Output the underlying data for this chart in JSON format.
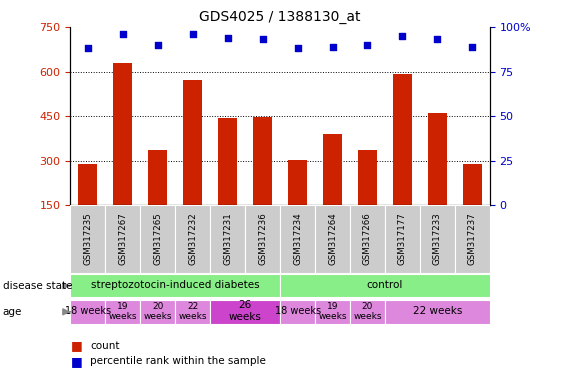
{
  "title": "GDS4025 / 1388130_at",
  "samples": [
    "GSM317235",
    "GSM317267",
    "GSM317265",
    "GSM317232",
    "GSM317231",
    "GSM317236",
    "GSM317234",
    "GSM317264",
    "GSM317266",
    "GSM317177",
    "GSM317233",
    "GSM317237"
  ],
  "bar_values": [
    290,
    630,
    335,
    570,
    445,
    448,
    302,
    390,
    335,
    590,
    462,
    290
  ],
  "percentile_values": [
    88,
    96,
    90,
    96,
    94,
    93,
    88,
    89,
    90,
    95,
    93,
    89
  ],
  "bar_color": "#cc2200",
  "percentile_color": "#0000cc",
  "ylim_left": [
    150,
    750
  ],
  "ylim_right": [
    0,
    100
  ],
  "yticks_left": [
    150,
    300,
    450,
    600,
    750
  ],
  "yticks_right": [
    0,
    25,
    50,
    75,
    100
  ],
  "grid_values": [
    300,
    450,
    600
  ],
  "tick_label_color_left": "#cc2200",
  "tick_label_color_right": "#0000cc",
  "sample_bg_color": "#cccccc",
  "disease_state_color": "#88ee88",
  "age_light_color": "#dd88dd",
  "age_dark_color": "#cc44cc",
  "legend_count_color": "#cc2200",
  "legend_percentile_color": "#0000cc",
  "age_data": [
    {
      "start": 0,
      "end": 1,
      "label": "18 weeks",
      "dark": false
    },
    {
      "start": 1,
      "end": 2,
      "label": "19\nweeks",
      "dark": false
    },
    {
      "start": 2,
      "end": 3,
      "label": "20\nweeks",
      "dark": false
    },
    {
      "start": 3,
      "end": 4,
      "label": "22\nweeks",
      "dark": false
    },
    {
      "start": 4,
      "end": 6,
      "label": "26\nweeks",
      "dark": true
    },
    {
      "start": 6,
      "end": 7,
      "label": "18 weeks",
      "dark": false
    },
    {
      "start": 7,
      "end": 8,
      "label": "19\nweeks",
      "dark": false
    },
    {
      "start": 8,
      "end": 9,
      "label": "20\nweeks",
      "dark": false
    },
    {
      "start": 9,
      "end": 12,
      "label": "22 weeks",
      "dark": false
    }
  ],
  "disease_data": [
    {
      "start": 0,
      "end": 6,
      "label": "streptozotocin-induced diabetes"
    },
    {
      "start": 6,
      "end": 12,
      "label": "control"
    }
  ]
}
